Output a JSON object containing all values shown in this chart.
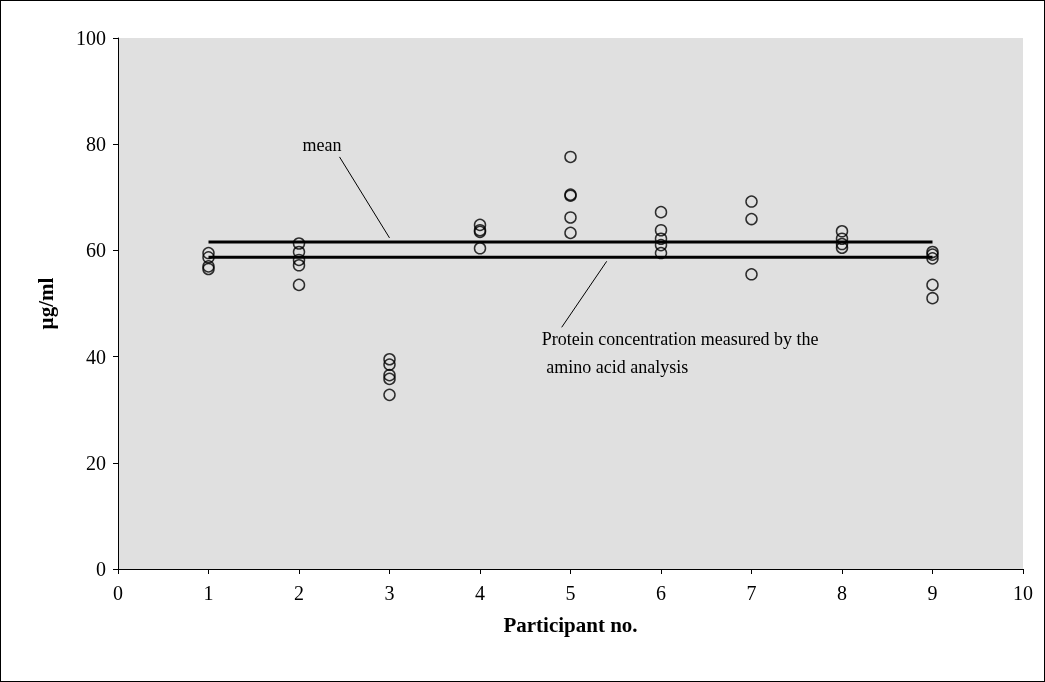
{
  "chart_data": {
    "type": "scatter",
    "xlabel": "Participant no.",
    "ylabel": "µg/ml",
    "xlim": [
      0,
      10
    ],
    "xticks": [
      0,
      1,
      2,
      3,
      4,
      5,
      6,
      7,
      8,
      9,
      10
    ],
    "ylim": [
      0,
      100
    ],
    "yticks": [
      0,
      20,
      40,
      60,
      80,
      100
    ],
    "grid": false,
    "annotations": [
      {
        "text": "mean",
        "x": 3.0,
        "y": 61.6
      },
      {
        "text": "Protein concentration measured by the amino acid analysis",
        "x": 5.4,
        "y": 58.7
      }
    ],
    "series": [
      {
        "type": "scatter",
        "marker": "circle",
        "color": "#000000",
        "x": [
          1,
          1,
          1,
          1,
          2,
          2,
          2,
          2,
          2,
          3,
          3,
          3,
          3,
          3,
          4,
          4,
          4,
          4,
          5,
          5,
          5,
          5,
          5,
          6,
          6,
          6,
          6,
          6,
          7,
          7,
          7,
          8,
          8,
          8,
          8,
          9,
          9,
          9,
          9,
          9
        ],
        "values": [
          59.5,
          58.7,
          57.0,
          56.5,
          61.3,
          59.7,
          58.2,
          57.2,
          53.5,
          39.5,
          38.5,
          36.5,
          35.8,
          32.8,
          64.8,
          63.8,
          63.5,
          60.4,
          77.6,
          70.5,
          70.3,
          66.2,
          63.3,
          67.2,
          63.8,
          62.2,
          61.0,
          59.5,
          69.2,
          65.9,
          55.5,
          63.6,
          62.2,
          61.2,
          60.5,
          59.7,
          59.2,
          58.5,
          53.5,
          51.0
        ]
      },
      {
        "type": "line",
        "marker": "none",
        "color": "#000000",
        "x": [
          1,
          9
        ],
        "values": [
          61.6,
          61.6
        ]
      },
      {
        "type": "line",
        "marker": "none",
        "color": "#000000",
        "x": [
          1,
          9
        ],
        "values": [
          58.7,
          58.7
        ]
      }
    ]
  }
}
